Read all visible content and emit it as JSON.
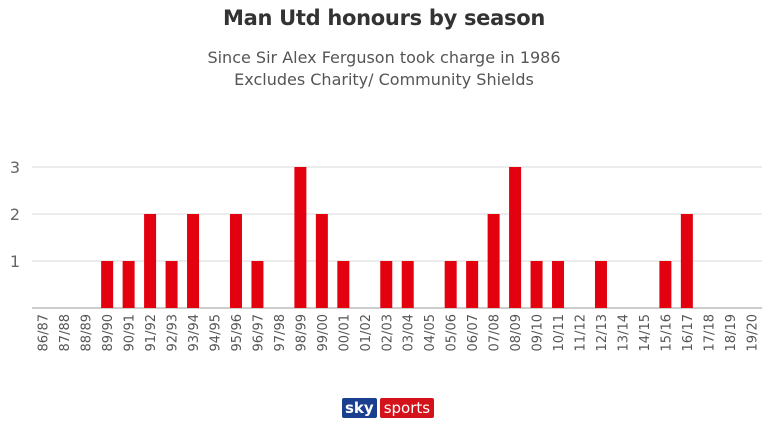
{
  "chart_data": {
    "type": "bar",
    "title": "Man Utd honours by season",
    "subtitle": [
      "Since Sir Alex Ferguson took charge in 1986",
      "Excludes Charity/ Community Shields"
    ],
    "xlabel": "",
    "ylabel": "",
    "ylim": [
      0,
      3
    ],
    "yticks": [
      1,
      2,
      3
    ],
    "grid": true,
    "bar_color": "#e3000f",
    "categories": [
      "86/87",
      "87/88",
      "88/89",
      "89/90",
      "90/91",
      "91/92",
      "92/93",
      "93/94",
      "94/95",
      "95/96",
      "96/97",
      "97/98",
      "98/99",
      "99/00",
      "00/01",
      "01/02",
      "02/03",
      "03/04",
      "04/05",
      "05/06",
      "06/07",
      "07/08",
      "08/09",
      "09/10",
      "10/11",
      "11/12",
      "12/13",
      "13/14",
      "14/15",
      "15/16",
      "16/17",
      "17/18",
      "18/19",
      "19/20"
    ],
    "values": [
      0,
      0,
      0,
      1,
      1,
      2,
      1,
      2,
      0,
      2,
      1,
      0,
      3,
      2,
      1,
      0,
      1,
      1,
      0,
      1,
      1,
      2,
      3,
      1,
      1,
      0,
      1,
      0,
      0,
      1,
      2,
      0,
      0,
      0
    ]
  },
  "logo": {
    "sky": "sky",
    "sports": "sports"
  }
}
